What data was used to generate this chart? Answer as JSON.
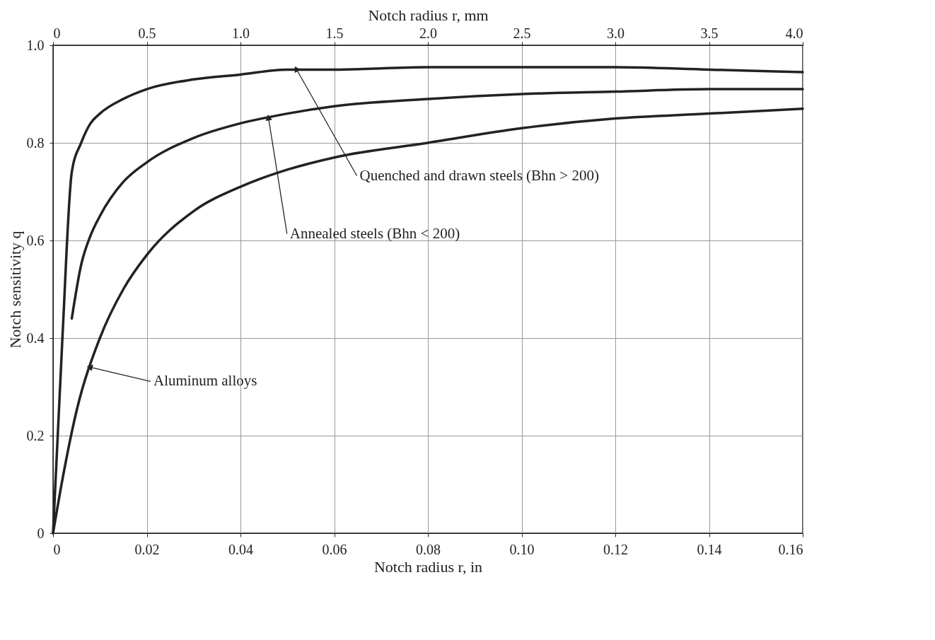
{
  "chart_data": {
    "type": "line",
    "xlabel": "Notch radius r, in",
    "ylabel": "Notch sensitivity q",
    "x2label": "Notch radius r, mm",
    "xlim": [
      0,
      0.16
    ],
    "xticks": [
      0,
      0.02,
      0.04,
      0.06,
      0.08,
      {
        "value": 0.1,
        "label": "0.10"
      },
      0.12,
      0.14,
      0.16
    ],
    "x2lim": [
      0,
      4
    ],
    "x2ticks": [
      0,
      0.5,
      {
        "value": 1,
        "label": "1.0"
      },
      1.5,
      {
        "value": 2,
        "label": "2.0"
      },
      2.5,
      {
        "value": 3,
        "label": "3.0"
      },
      3.5,
      {
        "value": 4,
        "label": "4.0"
      }
    ],
    "ylim": [
      0,
      1
    ],
    "yticks": [
      0,
      0.2,
      0.4,
      0.6,
      0.8,
      {
        "value": 1,
        "label": "1.0"
      }
    ],
    "grid": true,
    "legend": false,
    "line_style": "solid",
    "marker": "none",
    "series": [
      {
        "color": "#222222",
        "x": [
          0,
          0.002,
          0.004,
          0.006,
          0.008,
          0.01,
          0.015,
          0.02,
          0.03,
          0.04,
          0.05,
          0.06,
          0.08,
          0.1,
          0.12,
          0.14,
          0.16
        ],
        "values": [
          0,
          0.4,
          0.74,
          0.8,
          0.84,
          0.86,
          0.89,
          0.91,
          0.93,
          0.94,
          0.95,
          0.95,
          0.955,
          0.955,
          0.955,
          0.95,
          0.945
        ]
      },
      {
        "color": "#222222",
        "x": [
          0.004,
          0.006,
          0.008,
          0.01,
          0.015,
          0.02,
          0.03,
          0.04,
          0.05,
          0.06,
          0.08,
          0.1,
          0.12,
          0.14,
          0.16
        ],
        "values": [
          0.44,
          0.55,
          0.61,
          0.65,
          0.72,
          0.76,
          0.81,
          0.84,
          0.86,
          0.875,
          0.89,
          0.9,
          0.905,
          0.91,
          0.91
        ]
      },
      {
        "color": "#222222",
        "x": [
          0,
          0.002,
          0.005,
          0.01,
          0.015,
          0.02,
          0.03,
          0.04,
          0.05,
          0.06,
          0.08,
          0.1,
          0.12,
          0.14,
          0.16
        ],
        "values": [
          0,
          0.11,
          0.25,
          0.4,
          0.5,
          0.57,
          0.66,
          0.71,
          0.745,
          0.77,
          0.8,
          0.83,
          0.85,
          0.86,
          0.87
        ]
      }
    ],
    "annotations": [
      {
        "text": "Quenched and drawn steels (Bhn > 200)",
        "x": 0.052,
        "y": 0.95
      },
      {
        "text": "Annealed steels (Bhn < 200)",
        "x": 0.046,
        "y": 0.85
      },
      {
        "text": "Aluminum alloys",
        "x": 0.008,
        "y": 0.34
      }
    ]
  }
}
